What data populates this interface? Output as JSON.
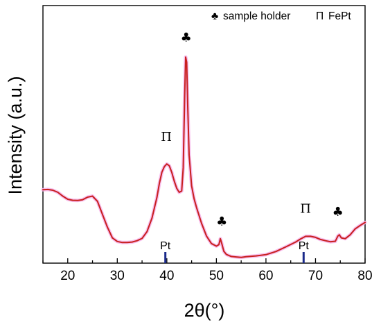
{
  "chart_data": {
    "type": "line",
    "title": "",
    "xlabel": "2θ(°)",
    "ylabel": "Intensity (a.u.)",
    "xlim": [
      15,
      80
    ],
    "ylim": [
      0,
      100
    ],
    "x_ticks": [
      20,
      30,
      40,
      50,
      60,
      70,
      80
    ],
    "y_ticks": [],
    "grid": false,
    "legend_position": "top-right",
    "legend": [
      {
        "symbol": "♣",
        "label": "sample holder"
      },
      {
        "symbol": "Π",
        "label": "FePt"
      }
    ],
    "colors": {
      "line": "#c8201e",
      "halo": "#f6b3ea",
      "reference": "#1a2a8a"
    },
    "series": [
      {
        "x": [
          15,
          16,
          17,
          18,
          19,
          20,
          21,
          22,
          23,
          24,
          25,
          26,
          27,
          28,
          29,
          30,
          31,
          32,
          33,
          34,
          35,
          36,
          37,
          38,
          38.5,
          39,
          39.5,
          40,
          40.5,
          41,
          41.5,
          42,
          42.5,
          43,
          43.3,
          43.6,
          43.8,
          44.0,
          44.2,
          44.5,
          45,
          45.5,
          46,
          47,
          48,
          49,
          50,
          50.5,
          50.8,
          51.1,
          51.5,
          52,
          53,
          54,
          55,
          56,
          58,
          60,
          62,
          64,
          66,
          67,
          68,
          69,
          70,
          71,
          72,
          73,
          74,
          74.5,
          74.8,
          75.2,
          76,
          77,
          78,
          79,
          80
        ],
        "y": [
          28.5,
          28.6,
          28.3,
          27.5,
          26,
          24.8,
          24.4,
          24.3,
          24.6,
          25.6,
          26,
          24,
          19,
          14,
          9.8,
          8.4,
          8,
          8,
          8.2,
          8.7,
          9.6,
          12.2,
          17.5,
          25.5,
          31,
          35.3,
          37.5,
          38.5,
          37.8,
          35.2,
          31.8,
          29,
          27.5,
          28,
          37,
          65,
          80,
          78,
          62,
          42,
          30,
          25,
          21.5,
          15.5,
          10.5,
          7.6,
          6.6,
          7.2,
          9.5,
          7.5,
          4.6,
          3.4,
          2.6,
          2.4,
          2.2,
          2.5,
          2.8,
          3.3,
          4.5,
          6.3,
          8.2,
          9.4,
          10.4,
          10.4,
          10,
          9.2,
          8.7,
          8.3,
          8.5,
          10.5,
          11,
          9.8,
          9.5,
          11,
          13.3,
          14.6,
          15.8
        ]
      }
    ],
    "annotations": [
      {
        "symbol": "Π",
        "x": 39.9,
        "y": 47.5
      },
      {
        "symbol": "♣",
        "x": 43.9,
        "y": 86
      },
      {
        "symbol": "♣",
        "x": 51.1,
        "y": 14.5
      },
      {
        "symbol": "Π",
        "x": 68,
        "y": 19.5
      },
      {
        "symbol": "♣",
        "x": 74.5,
        "y": 18.3
      }
    ],
    "reference_lines": [
      {
        "label": "Pt",
        "x": 39.7
      },
      {
        "label": "Pt",
        "x": 67.6
      }
    ]
  }
}
